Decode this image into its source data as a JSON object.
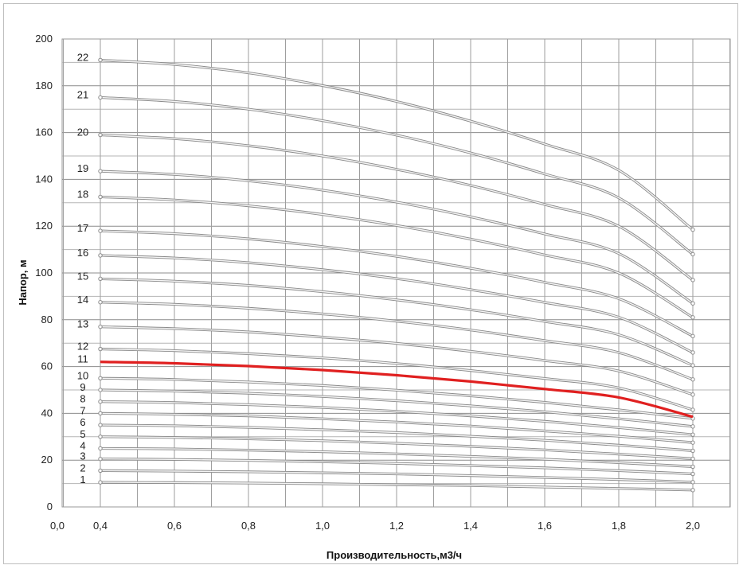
{
  "chart_data": {
    "type": "line",
    "title": "",
    "xlabel": "Производительность,м3/ч",
    "ylabel": "Напор, м",
    "xlim": [
      0.0,
      2.0
    ],
    "ylim": [
      0,
      200
    ],
    "x_ticks": [
      "0,0",
      "0,4",
      "0,6",
      "0,8",
      "1,0",
      "1,2",
      "1,4",
      "1,6",
      "1,8",
      "2,0"
    ],
    "y_ticks": [
      "0",
      "20",
      "40",
      "60",
      "80",
      "100",
      "120",
      "140",
      "160",
      "180",
      "200"
    ],
    "grid": true,
    "x": [
      0.4,
      0.6,
      0.8,
      1.0,
      1.2,
      1.4,
      1.6,
      1.8,
      2.0
    ],
    "highlight_color": "#e02020",
    "curve_color": "#8a8a8a",
    "series": [
      {
        "name": "1",
        "values": [
          10.5,
          10.4,
          10.2,
          9.9,
          9.5,
          9.1,
          8.5,
          7.9,
          7.2
        ]
      },
      {
        "name": "2",
        "values": [
          15.5,
          15.3,
          15.0,
          14.6,
          14.1,
          13.4,
          12.6,
          11.7,
          10.6
        ]
      },
      {
        "name": "3",
        "values": [
          20.5,
          20.3,
          19.9,
          19.3,
          18.6,
          17.7,
          16.7,
          15.5,
          14.1
        ]
      },
      {
        "name": "4",
        "values": [
          25.0,
          24.8,
          24.3,
          23.6,
          22.7,
          21.6,
          20.4,
          18.9,
          17.2
        ]
      },
      {
        "name": "5",
        "values": [
          30.0,
          29.7,
          29.1,
          28.3,
          27.2,
          25.9,
          24.4,
          22.6,
          20.6
        ]
      },
      {
        "name": "6",
        "values": [
          35.0,
          34.7,
          34.0,
          33.0,
          31.8,
          30.2,
          28.5,
          26.4,
          24.0
        ]
      },
      {
        "name": "7",
        "values": [
          40.0,
          39.6,
          38.9,
          37.7,
          36.3,
          34.6,
          32.5,
          30.2,
          27.5
        ]
      },
      {
        "name": "8",
        "values": [
          45.0,
          44.6,
          43.7,
          42.5,
          40.9,
          38.9,
          36.6,
          33.9,
          30.9
        ]
      },
      {
        "name": "9",
        "values": [
          50.0,
          49.5,
          48.6,
          47.2,
          45.4,
          43.2,
          40.7,
          37.7,
          34.4
        ]
      },
      {
        "name": "10",
        "values": [
          55.0,
          54.5,
          53.4,
          51.9,
          49.9,
          47.5,
          44.7,
          41.5,
          37.8
        ]
      },
      {
        "name": "11",
        "values": [
          62.0,
          61.4,
          60.2,
          58.5,
          56.3,
          53.6,
          50.4,
          46.8,
          38.5
        ]
      },
      {
        "name": "12",
        "values": [
          67.5,
          66.8,
          65.5,
          63.7,
          61.3,
          58.3,
          54.9,
          50.9,
          41.5
        ]
      },
      {
        "name": "13",
        "values": [
          77.0,
          76.2,
          74.8,
          72.6,
          69.9,
          66.5,
          62.6,
          58.1,
          48.0
        ]
      },
      {
        "name": "14",
        "values": [
          87.5,
          86.6,
          84.9,
          82.5,
          79.4,
          75.6,
          71.1,
          66.0,
          54.5
        ]
      },
      {
        "name": "15",
        "values": [
          97.5,
          96.5,
          94.7,
          92.0,
          88.5,
          84.3,
          79.3,
          73.6,
          60.5
        ]
      },
      {
        "name": "16",
        "values": [
          107.5,
          106.4,
          104.4,
          101.4,
          97.6,
          92.9,
          87.4,
          81.1,
          66.0
        ]
      },
      {
        "name": "17",
        "values": [
          118.0,
          116.8,
          114.6,
          111.3,
          107.1,
          102.0,
          96.0,
          89.0,
          73.0
        ]
      },
      {
        "name": "18",
        "values": [
          132.5,
          131.2,
          128.7,
          125.0,
          120.3,
          114.5,
          107.7,
          100.0,
          81.0
        ]
      },
      {
        "name": "19",
        "values": [
          143.5,
          142.1,
          139.4,
          135.4,
          130.3,
          124.0,
          116.7,
          108.3,
          87.0
        ]
      },
      {
        "name": "20",
        "values": [
          159.0,
          157.4,
          154.4,
          150.0,
          144.3,
          137.4,
          129.3,
          120.0,
          97.0
        ]
      },
      {
        "name": "21",
        "values": [
          175.0,
          173.3,
          170.0,
          165.1,
          158.9,
          151.3,
          142.3,
          132.1,
          108.0
        ]
      },
      {
        "name": "22",
        "values": [
          191.0,
          189.1,
          185.5,
          180.1,
          173.3,
          164.9,
          155.1,
          143.9,
          118.5
        ]
      }
    ],
    "highlighted_series": "11"
  }
}
